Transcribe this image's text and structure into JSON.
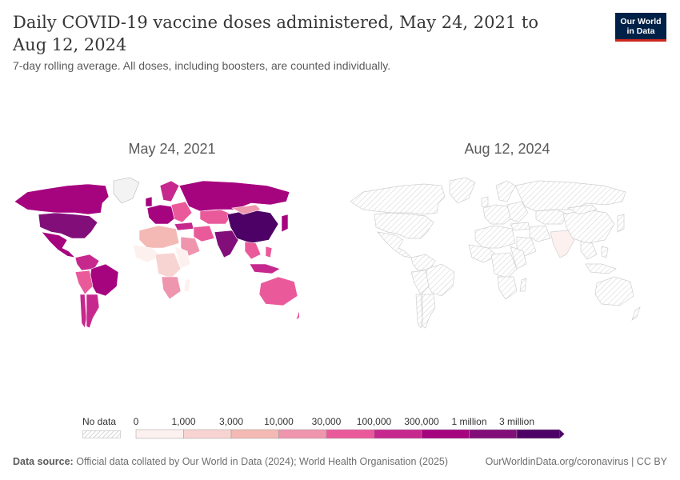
{
  "header": {
    "title": "Daily COVID-19 vaccine doses administered, May 24, 2021 to Aug 12, 2024",
    "subtitle": "7-day rolling average. All doses, including boosters, are counted individually.",
    "logo_line1": "Our World",
    "logo_line2": "in Data"
  },
  "maps": [
    {
      "title": "May 24, 2021"
    },
    {
      "title": "Aug 12, 2024"
    }
  ],
  "legend": {
    "no_data_label": "No data",
    "ticks": [
      "0",
      "1,000",
      "3,000",
      "10,000",
      "30,000",
      "100,000",
      "300,000",
      "1 million",
      "3 million"
    ],
    "colors": [
      "#fdf1ef",
      "#f7d4d2",
      "#f4b9b4",
      "#ef95ae",
      "#ea5a9b",
      "#c7288d",
      "#a6037f",
      "#820f79",
      "#4d0065"
    ]
  },
  "footer": {
    "source_label": "Data source:",
    "source_text": "Official data collated by Our World in Data (2024); World Health Organisation (2025)",
    "url_text": "OurWorldinData.org/coronavirus | CC BY"
  },
  "chart_data": {
    "type": "map",
    "panels": [
      "May 24, 2021",
      "Aug 12, 2024"
    ],
    "regions_May_24_2021": {
      "China": "3 million+",
      "United States": "1 million – 3 million",
      "India": "1 million – 3 million",
      "Brazil": "300,000 – 1 million",
      "Canada": "300,000 – 1 million",
      "Russia": "300,000 – 1 million",
      "Mexico": "300,000 – 1 million",
      "Europe": "100,000 – 1 million",
      "Australia": "30,000 – 100,000",
      "Argentina": "100,000 – 300,000",
      "Indonesia": "100,000 – 300,000",
      "Japan": "300,000 – 1 million",
      "Africa": "0 – 10,000",
      "Greenland": "No data"
    },
    "regions_Aug_12_2024": {
      "India": "0 – 1,000",
      "All other countries": "No data"
    }
  }
}
